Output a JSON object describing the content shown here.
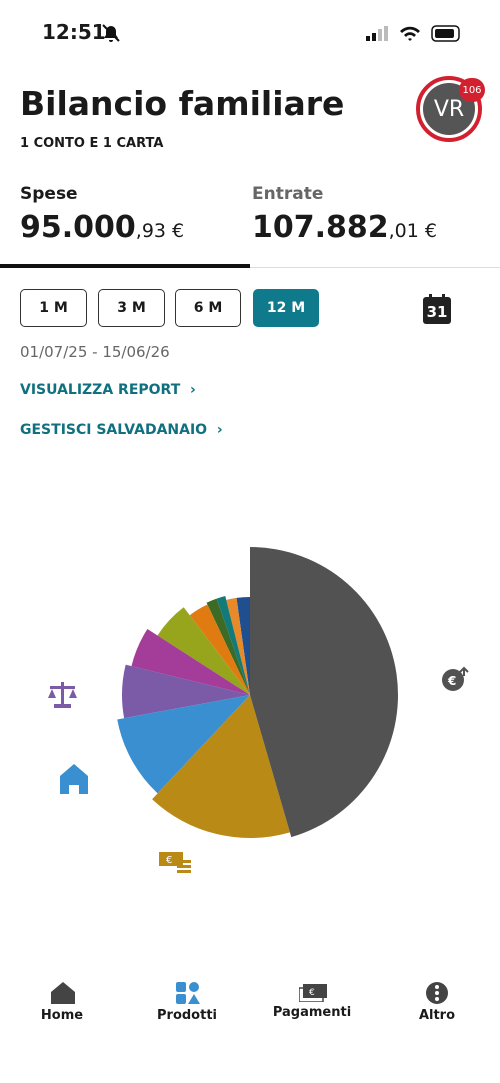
{
  "status_bar": {
    "time": "12:51"
  },
  "header": {
    "title": "Bilancio familiare",
    "subtitle": "1 CONTO E 1 CARTA",
    "avatar": "VR",
    "badge": "106"
  },
  "summary": {
    "spese": {
      "label": "Spese",
      "integer": "95.000",
      "decimal": ",93 €"
    },
    "entrate": {
      "label": "Entrate",
      "integer": "107.882",
      "decimal": ",01 €"
    }
  },
  "periods": [
    "1 M",
    "3 M",
    "6 M",
    "12 M"
  ],
  "active_period": 3,
  "calendar_day": "31",
  "date_range": "01/07/25 - 15/06/26",
  "links": [
    "VISUALIZZA REPORT",
    "GESTISCI SALVADANAIO"
  ],
  "chart_data": {
    "type": "pie",
    "values": [
      45.5,
      16.5,
      10.1,
      6.7,
      5.3,
      5.6,
      3.3,
      1.7,
      1.4,
      1.7,
      2.2
    ],
    "colors": [
      "#525252",
      "#b98a16",
      "#3a8fd0",
      "#7b5ba8",
      "#a33d99",
      "#96a51c",
      "#e07b12",
      "#3d6b25",
      "#137a7a",
      "#e8892a",
      "#1f4f8f"
    ]
  },
  "nav": [
    "Home",
    "Prodotti",
    "Pagamenti",
    "Altro"
  ]
}
